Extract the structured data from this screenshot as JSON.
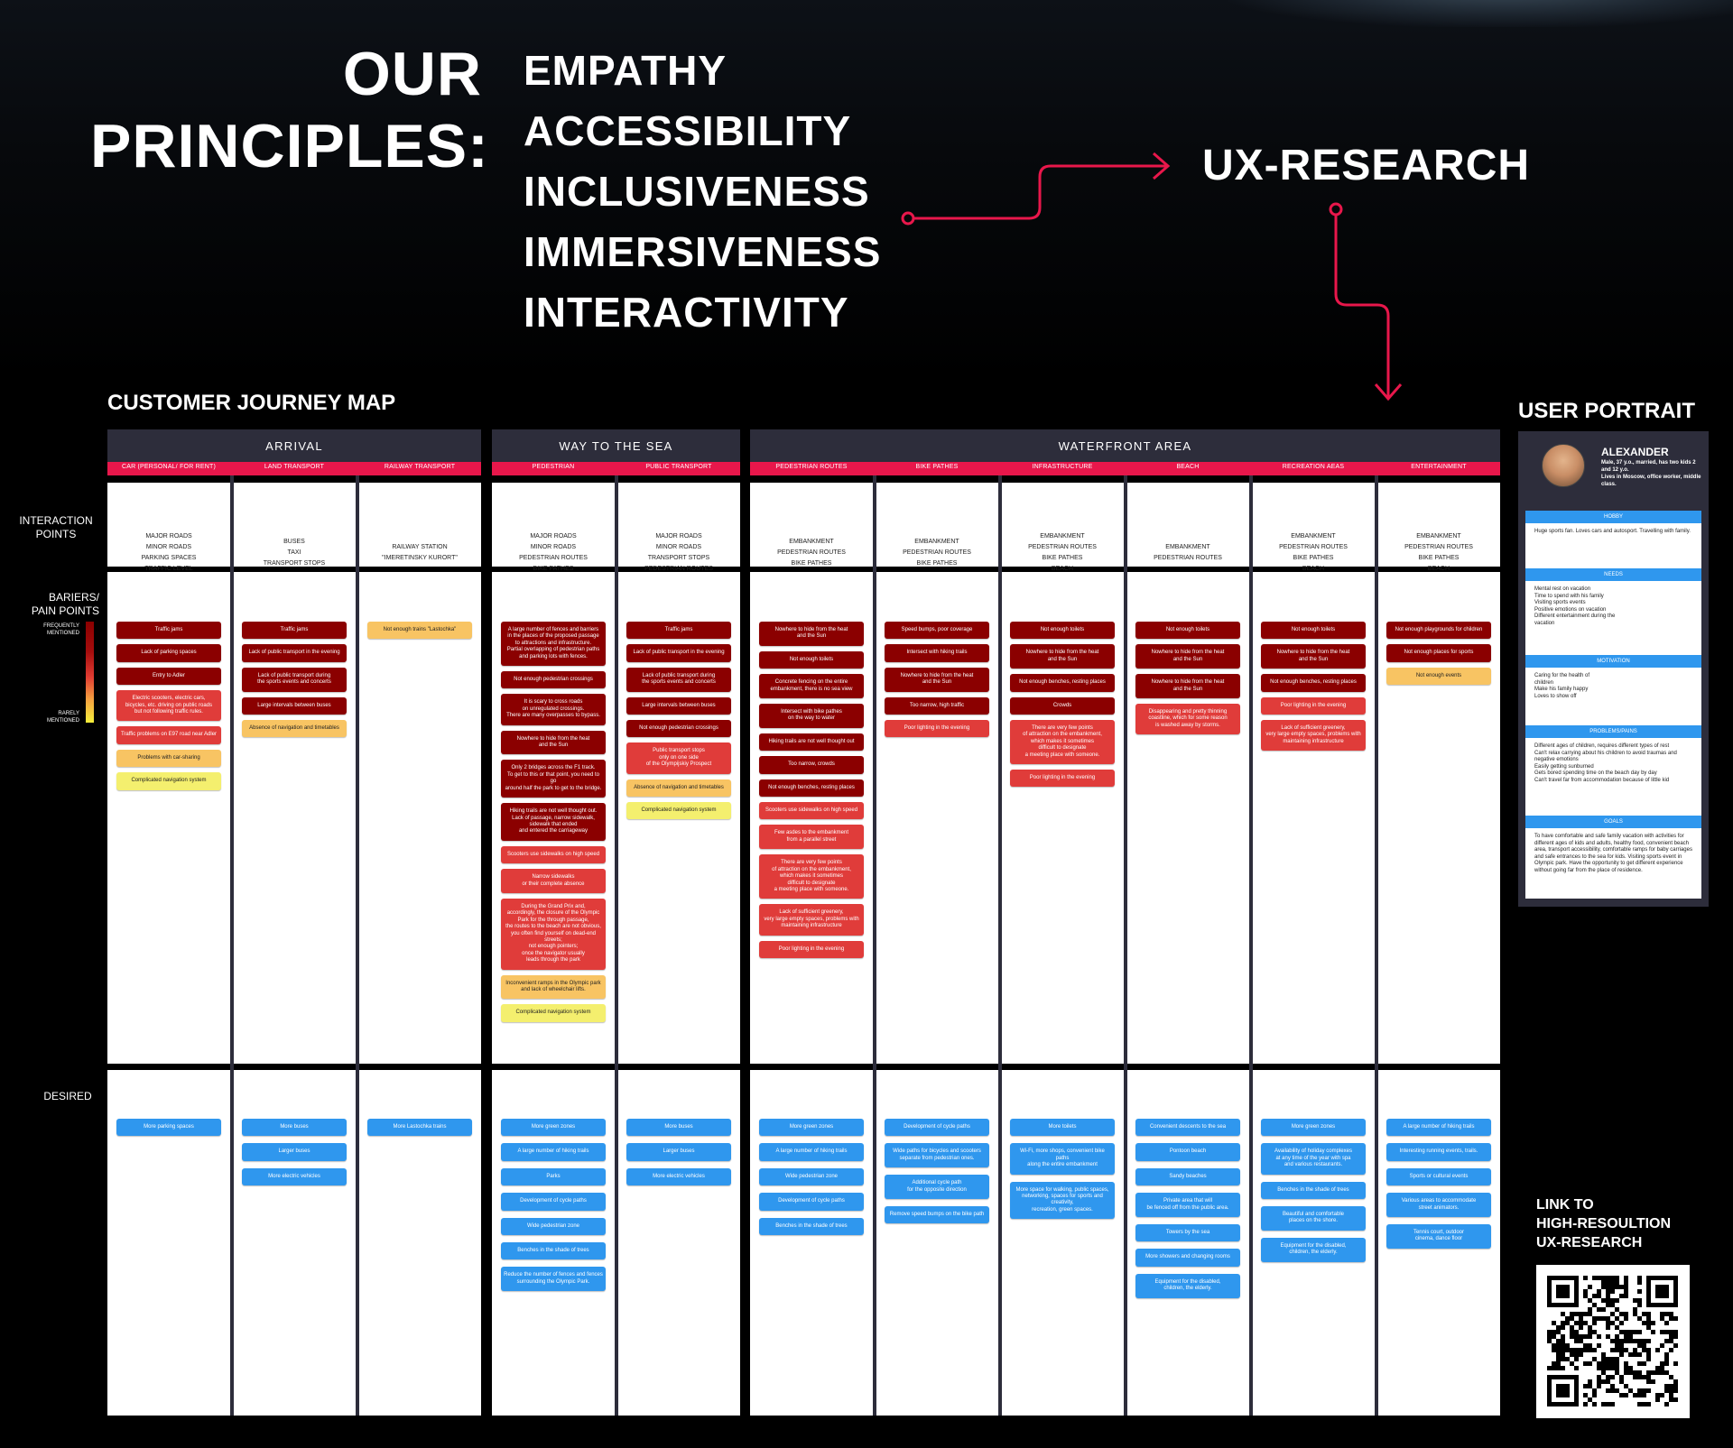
{
  "principles": {
    "title_line1": "OUR",
    "title_line2": "PRINCIPLES:",
    "items": [
      "EMPATHY",
      "ACCESSIBILITY",
      "INCLUSIVENESS",
      "IMMERSIVENESS",
      "INTERACTIVITY"
    ]
  },
  "ux_research_label": "UX-RESEARCH",
  "journey_map": {
    "title": "CUSTOMER JOURNEY MAP",
    "row_labels": {
      "interaction": "INTERACTION\nPOINTS",
      "barriers": "BARIERS/\nPAIN POINTS",
      "scale_high": "FREQUENTLY\nMENTIONED",
      "scale_low": "RARELY\nMENTIONED",
      "desired": "DESIRED"
    },
    "groups": [
      {
        "name": "ARRIVAL",
        "columns": [
          {
            "label": "CAR (PERSONAL/ FOR RENT)",
            "interaction": "MAJOR ROADS\nMINOR ROADS\nPARKING SPACES\nTRAFFIC LEVEL",
            "barriers": [
              {
                "text": "Traffic jams",
                "level": "dark"
              },
              {
                "text": "Lack of parking spaces",
                "level": "dark"
              },
              {
                "text": "Entry to Adler",
                "level": "dark"
              },
              {
                "text": "Electric scooters, electric cars,\nbicycles, etc. driving on public roads\nbut not following traffic rules.",
                "level": "red"
              },
              {
                "text": "Traffic problems on E97 road near Adler",
                "level": "red"
              },
              {
                "text": "Problems with car-sharing",
                "level": "orange"
              },
              {
                "text": "Complicated navigation system",
                "level": "yellow"
              }
            ],
            "desired": [
              "More parking spaces"
            ]
          },
          {
            "label": "LAND TRANSPORT",
            "interaction": "BUSES\nTAXI\nTRANSPORT STOPS",
            "barriers": [
              {
                "text": "Traffic jams",
                "level": "dark"
              },
              {
                "text": "Lack of public transport in the evening",
                "level": "dark"
              },
              {
                "text": "Lack of public transport during\nthe sports events and concerts",
                "level": "dark"
              },
              {
                "text": "Large intervals between buses",
                "level": "dark"
              },
              {
                "text": "Absence of navigation and timetables",
                "level": "orange"
              }
            ],
            "desired": [
              "More buses",
              "Larger buses",
              "More electric vehicles"
            ]
          },
          {
            "label": "RAILWAY TRANSPORT",
            "interaction": "RAILWAY STATION\n\"IMERETINSKY KURORT\"",
            "barriers": [
              {
                "text": "Not enough trains \"Lastochka\"",
                "level": "orange"
              }
            ],
            "desired": [
              "More Lastochka trains"
            ]
          }
        ]
      },
      {
        "name": "WAY TO THE SEA",
        "columns": [
          {
            "label": "PEDESTRIAN",
            "interaction": "MAJOR ROADS\nMINOR ROADS\nPEDESTRIAN ROUTES\nBIKE PATHES",
            "barriers": [
              {
                "text": "A large number of fences and barriers\nin the places of the proposed passage\nto attractions and infrastructure.\nPartial overlapping of pedestrian paths\nand parking lots with fences.",
                "level": "dark"
              },
              {
                "text": "Not enough pedestrian crossings",
                "level": "dark"
              },
              {
                "text": "It is scary to cross roads\non unregulated crossings.\nThere are many overpasses to bypass.",
                "level": "dark"
              },
              {
                "text": "Nowhere to hide from the heat\nand the Sun",
                "level": "dark"
              },
              {
                "text": "Only 2 bridges across the F1 track.\nTo get to this or that point, you need to go\naround half the park to get to the bridge.",
                "level": "dark"
              },
              {
                "text": "Hiking trails are not well thought out.\nLack of passage, narrow sidewalk,\nsidewalk that ended\nand entered the carriageway",
                "level": "dark"
              },
              {
                "text": "Scooters use sidewalks on high speed",
                "level": "red"
              },
              {
                "text": "Narrow sidewalks\nor their complete absence",
                "level": "red"
              },
              {
                "text": "During the Grand Prix and,\naccordingly, the closure of the Olympic\nPark for the through passage,\nthe routes to the beach are not obvious,\nyou often find yourself on dead-end streets;\nnot enough pointers;\nonce the navigator usually\nleads through the park",
                "level": "red"
              },
              {
                "text": "Inconvenient ramps in the Olympic park\nand lack of wheelchair lifts.",
                "level": "orange"
              },
              {
                "text": "Complicated navigation system",
                "level": "yellow"
              }
            ],
            "desired": [
              "More green zones",
              "A large number of hiking trails",
              "Parks",
              "Development of cycle paths",
              "Wide pedestrian zone",
              "Benches in the shade of trees",
              "Reduce the number of fences and fences\nsurrounding the Olympic Park."
            ]
          },
          {
            "label": "PUBLIC TRANSPORT",
            "interaction": "MAJOR ROADS\nMINOR ROADS\nTRANSPORT STOPS\nPEDESTRIAN ROUTES",
            "barriers": [
              {
                "text": "Traffic jams",
                "level": "dark"
              },
              {
                "text": "Lack of public transport in the evening",
                "level": "dark"
              },
              {
                "text": "Lack of public transport during\nthe sports events and concerts",
                "level": "dark"
              },
              {
                "text": "Large intervals between buses",
                "level": "dark"
              },
              {
                "text": "Not enough pedestrian crossings",
                "level": "dark"
              },
              {
                "text": "Public transport stops\nonly on one side\nof the Olympijskiy Prospect",
                "level": "red"
              },
              {
                "text": "Absence of navigation and timetables",
                "level": "orange"
              },
              {
                "text": "Complicated navigation system",
                "level": "yellow"
              }
            ],
            "desired": [
              "More buses",
              "Larger buses",
              "More electric vehicles"
            ]
          }
        ]
      },
      {
        "name": "WATERFRONT AREA",
        "columns": [
          {
            "label": "PEDESTRIAN ROUTES",
            "interaction": "EMBANKMENT\nPEDESTRIAN ROUTES\nBIKE PATHES",
            "barriers": [
              {
                "text": "Nowhere to hide from the heat\nand the Sun",
                "level": "dark"
              },
              {
                "text": "Not enough toilets",
                "level": "dark"
              },
              {
                "text": "Concrete fencing on the entire\nembankment, there is no sea view",
                "level": "dark"
              },
              {
                "text": "Intersect with bike pathes\non the way to water",
                "level": "dark"
              },
              {
                "text": "Hiking trails are not well thought out",
                "level": "dark"
              },
              {
                "text": "Too narrow, crowds",
                "level": "dark"
              },
              {
                "text": "Not enough benches, resting places",
                "level": "dark"
              },
              {
                "text": "Scooters use sidewalks on high speed",
                "level": "red"
              },
              {
                "text": "Few asdes to the embankment\nfrom a parallel street",
                "level": "red"
              },
              {
                "text": "There are very few points\nof attraction on the embankment,\nwhich makes it sometimes\ndifficult to designate\na meeting place with someone.",
                "level": "red"
              },
              {
                "text": "Lack of sufficient greenery,\nvery large empty spaces, problems with\nmaintaining infrastructure",
                "level": "red"
              },
              {
                "text": "Poor lighting in the evening",
                "level": "red"
              }
            ],
            "desired": [
              "More green zones",
              "A large number of hiking trails",
              "Wide pedestrian zone",
              "Development of cycle paths",
              "Benches in the shade of trees"
            ]
          },
          {
            "label": "BIKE PATHES",
            "interaction": "EMBANKMENT\nPEDESTRIAN ROUTES\nBIKE PATHES",
            "barriers": [
              {
                "text": "Speed bumps, poor coverage",
                "level": "dark"
              },
              {
                "text": "Intersect with hiking trails",
                "level": "dark"
              },
              {
                "text": "Nowhere to hide from the heat\nand the Sun",
                "level": "dark"
              },
              {
                "text": "Too narrow,  high traffic",
                "level": "dark"
              },
              {
                "text": "Poor lighting in the evening",
                "level": "red"
              }
            ],
            "desired": [
              "Development of cycle paths",
              "Wide paths for bicycles and scooters\nseparate from pedestrian ones.",
              "Additional cycle path\nfor the opposite direction",
              "Remove speed bumps on the bike path"
            ]
          },
          {
            "label": "INFRASTRUCTURE",
            "interaction": "EMBANKMENT\nPEDESTRIAN ROUTES\nBIKE PATHES\nBEACH",
            "barriers": [
              {
                "text": "Not enough toilets",
                "level": "dark"
              },
              {
                "text": "Nowhere to hide from the heat\nand the Sun",
                "level": "dark"
              },
              {
                "text": "Not enough benches, resting places",
                "level": "dark"
              },
              {
                "text": "Crowds",
                "level": "dark"
              },
              {
                "text": "There are very few points\nof attraction on the embankment,\nwhich makes it sometimes\ndifficult to designate\na meeting place with someone.",
                "level": "red"
              },
              {
                "text": "Poor lighting in the evening",
                "level": "red"
              }
            ],
            "desired": [
              "More toilets",
              "Wi-Fi, more shops, convenient bike paths\nalong the entire embankment",
              "More space for walking, public spaces,\nnetworking, spaces for sports and creativity,\nrecreation, green spaces."
            ]
          },
          {
            "label": "BEACH",
            "interaction": "EMBANKMENT\nPEDESTRIAN ROUTES",
            "barriers": [
              {
                "text": "Not enough toilets",
                "level": "dark"
              },
              {
                "text": "Nowhere to hide from the heat\nand the Sun",
                "level": "dark"
              },
              {
                "text": "Nowhere to hide from the heat\nand the Sun",
                "level": "dark"
              },
              {
                "text": "Disappearing and pretty thinning\ncoastline, which for some reason\nis washed away by storms.",
                "level": "red"
              }
            ],
            "desired": [
              "Convenient descents to the sea",
              "Pontoon beach",
              "Sandy beaches",
              "Private area that will\nbe fenced off from the public area.",
              "Towers by the sea",
              "More showers and changing rooms",
              "Equipment for the disabled,\nchildren, the elderly."
            ]
          },
          {
            "label": "RECREATION AEAS",
            "interaction": "EMBANKMENT\nPEDESTRIAN ROUTES\nBIKE PATHES\nBEACH",
            "barriers": [
              {
                "text": "Not enough toilets",
                "level": "dark"
              },
              {
                "text": "Nowhere to hide from the heat\nand the Sun",
                "level": "dark"
              },
              {
                "text": "Not enough benches, resting places",
                "level": "dark"
              },
              {
                "text": "Poor lighting in the evening",
                "level": "red"
              },
              {
                "text": "Lack of sufficient greenery,\nvery large empty spaces, problems with\nmaintaining infrastructure",
                "level": "red"
              }
            ],
            "desired": [
              "More green zones",
              "Availability of holiday complexes\nat any time of the year with spa\nand various restaurants.",
              "Benches in the shade of trees",
              "Beautiful and comfortable\nplaces on the shore.",
              "Equipment for the disabled,\nchildren, the elderly."
            ]
          },
          {
            "label": "ENTERTAINMENT",
            "interaction": "EMBANKMENT\nPEDESTRIAN ROUTES\nBIKE PATHES\nBEACH",
            "barriers": [
              {
                "text": "Not enough playgrounds for children",
                "level": "dark"
              },
              {
                "text": "Not enough places for sports",
                "level": "dark"
              },
              {
                "text": "Not enough  events",
                "level": "orange"
              }
            ],
            "desired": [
              "A large number of hiking trails",
              "Interesting running events, trails.",
              "Sports or cultural events",
              "Various areas to accommodate\nstreet animators.",
              "Tennis court, outdoor\ncinema, dance floor"
            ]
          }
        ]
      }
    ]
  },
  "portrait": {
    "title": "USER PORTRAIT",
    "name": "ALEXANDER",
    "description": "Male, 37 y.o., married, has two kids 2 and 12 y.o.\nLives in Moscow, office worker, middle class.",
    "sections": [
      {
        "title": "HOBBY",
        "text": "Huge sports fan. Loves cars and autosport. Travelling with family."
      },
      {
        "title": "NEEDS",
        "text": "Mental rest on vacation\nTime to spend with his family\nVisiting sports events\nPositive emotions on vacation\nDifferent entertainment during the\nvacation"
      },
      {
        "title": "MOTIVATION",
        "text": "Caring for the health of\nchildren\nMake his family happy\nLoves to show off"
      },
      {
        "title": "PROBLEMS/PAINS",
        "text": "Different ages of children, requires different types of rest\nCan't relax carrying about his children to avoid traumas and negative emotions\nEasily getting sunburned\nGets bored spending time on the beach day by day\nCan't travel far from accommodation because of little kid"
      },
      {
        "title": "GOALS",
        "text": "To have comfortable and safe family vacation with activities for different ages of kids and adults, healthy food, convenient beach area, transport accessibility, comfortable ramps for baby carriages and safe entrances to the sea for kids. Visiting sports event in Olympic park. Have the opportunity to get different experience without going far from the place of residence."
      }
    ]
  },
  "qr": {
    "label_line1": "LINK TO",
    "label_line2": "HIGH-RESOULTION",
    "label_line3": "UX-RESEARCH"
  },
  "colors": {
    "accent": "#e8174b",
    "header": "#2d2d3b",
    "frequent": "#8b0000",
    "common": "#e03c3a",
    "occasional": "#f8c463",
    "rare": "#f4ef6e",
    "desired": "#2f97ee"
  }
}
